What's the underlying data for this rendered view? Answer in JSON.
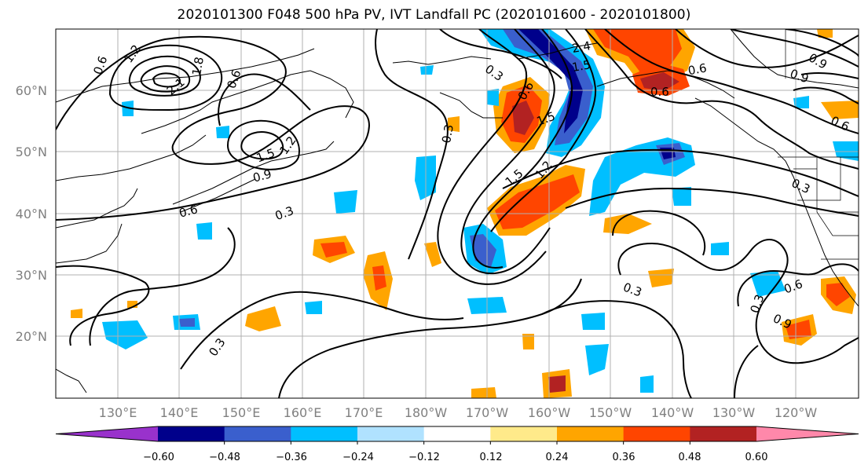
{
  "title": "2020101300 F048 500 hPa PV, IVT Landfall PC (2020101600 - 2020101800)",
  "map": {
    "lat_labels": [
      "60°N",
      "50°N",
      "40°N",
      "30°N",
      "20°N"
    ],
    "lon_labels": [
      "130°E",
      "140°E",
      "150°E",
      "160°E",
      "170°E",
      "180°W",
      "170°W",
      "160°W",
      "150°W",
      "140°W",
      "130°W",
      "120°W"
    ],
    "contour_labels": [
      "0.6",
      "1.2",
      "2.1",
      "1.8",
      "0.6",
      "1.5",
      "1.2",
      "0.9",
      "0.6",
      "0.3",
      "0.3",
      "2.4",
      "1.5",
      "0.3",
      "0.9",
      "1.5",
      "1.2",
      "0.6",
      "0.6",
      "0.6",
      "1.5",
      "0.9",
      "0.3",
      "0.6",
      "0.3",
      "0.3",
      "0.6",
      "0.9",
      "0.3"
    ]
  },
  "colorbar": {
    "ticks": [
      "−0.60",
      "−0.48",
      "−0.36",
      "−0.24",
      "−0.12",
      "0.12",
      "0.24",
      "0.36",
      "0.48",
      "0.60"
    ],
    "colors": [
      "#9932cc",
      "#00008b",
      "#3a5fcd",
      "#00bfff",
      "#b0e2ff",
      "#ffffff",
      "#ffea8a",
      "#ffa500",
      "#ff4500",
      "#b22222",
      "#ff88aa"
    ]
  }
}
